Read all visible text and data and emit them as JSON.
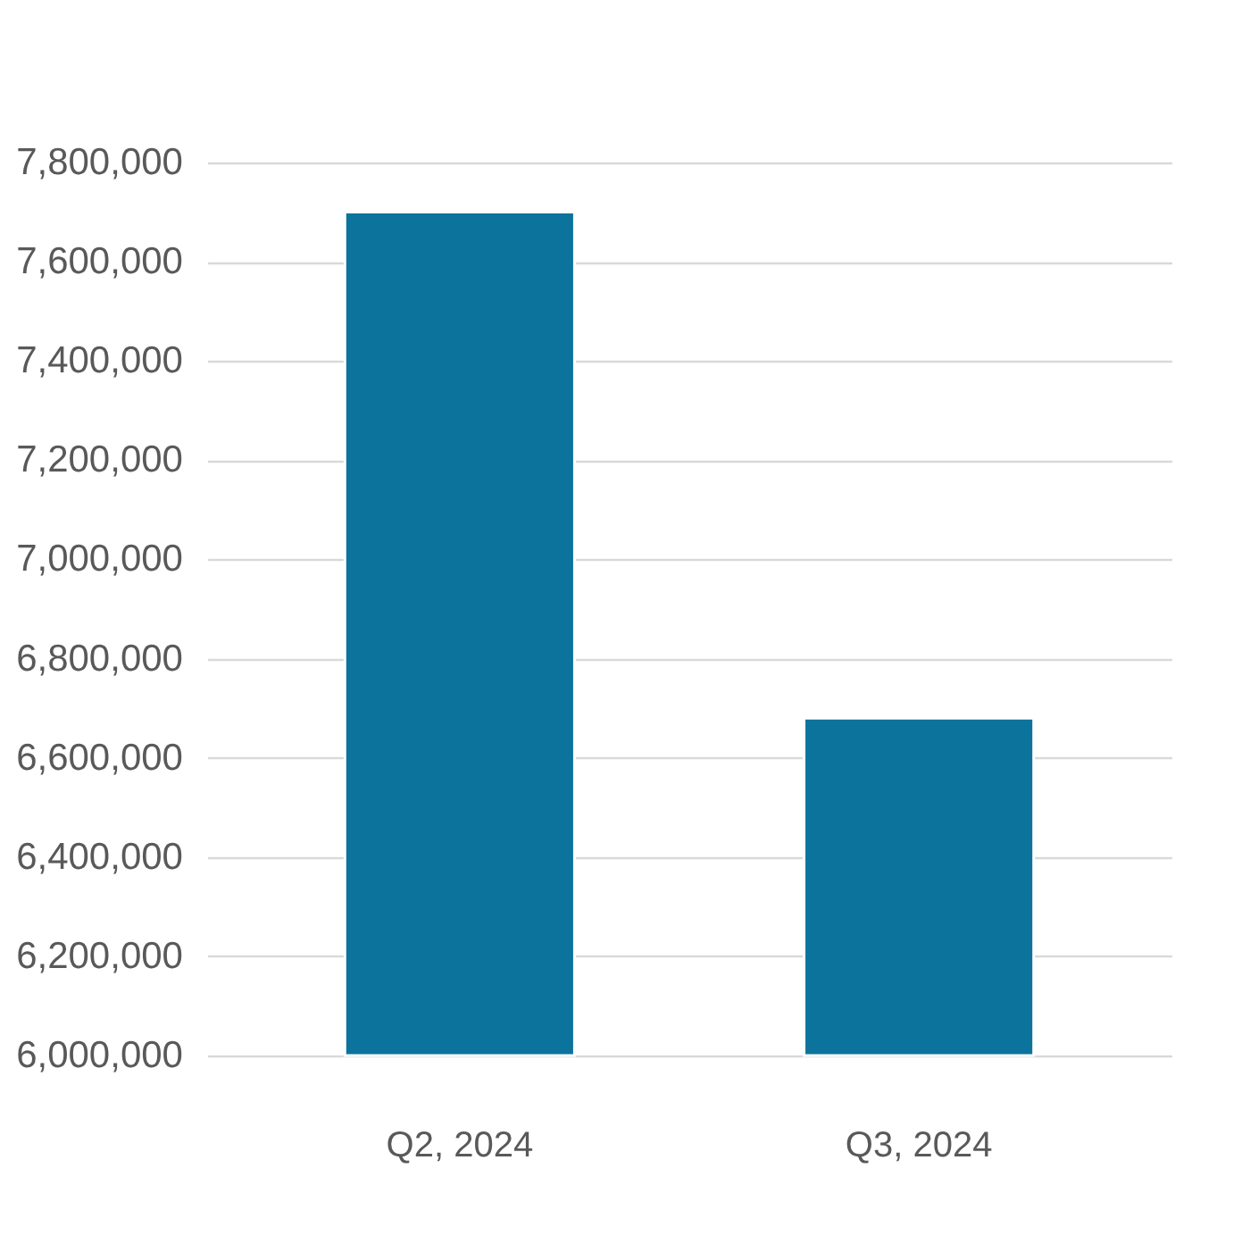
{
  "chart_data": {
    "type": "bar",
    "categories": [
      "Q2, 2024",
      "Q3, 2024"
    ],
    "values": [
      7700000,
      6680000
    ],
    "color": "#0b739c",
    "ylim": [
      6000000,
      7800000
    ],
    "yticks": [
      {
        "value": 6000000,
        "label": "6,000,000"
      },
      {
        "value": 6200000,
        "label": "6,200,000"
      },
      {
        "value": 6400000,
        "label": "6,400,000"
      },
      {
        "value": 6600000,
        "label": "6,600,000"
      },
      {
        "value": 6800000,
        "label": "6,800,000"
      },
      {
        "value": 7000000,
        "label": "7,000,000"
      },
      {
        "value": 7200000,
        "label": "7,200,000"
      },
      {
        "value": 7400000,
        "label": "7,400,000"
      },
      {
        "value": 7600000,
        "label": "7,600,000"
      },
      {
        "value": 7800000,
        "label": "7,800,000"
      }
    ],
    "grid": "y"
  }
}
